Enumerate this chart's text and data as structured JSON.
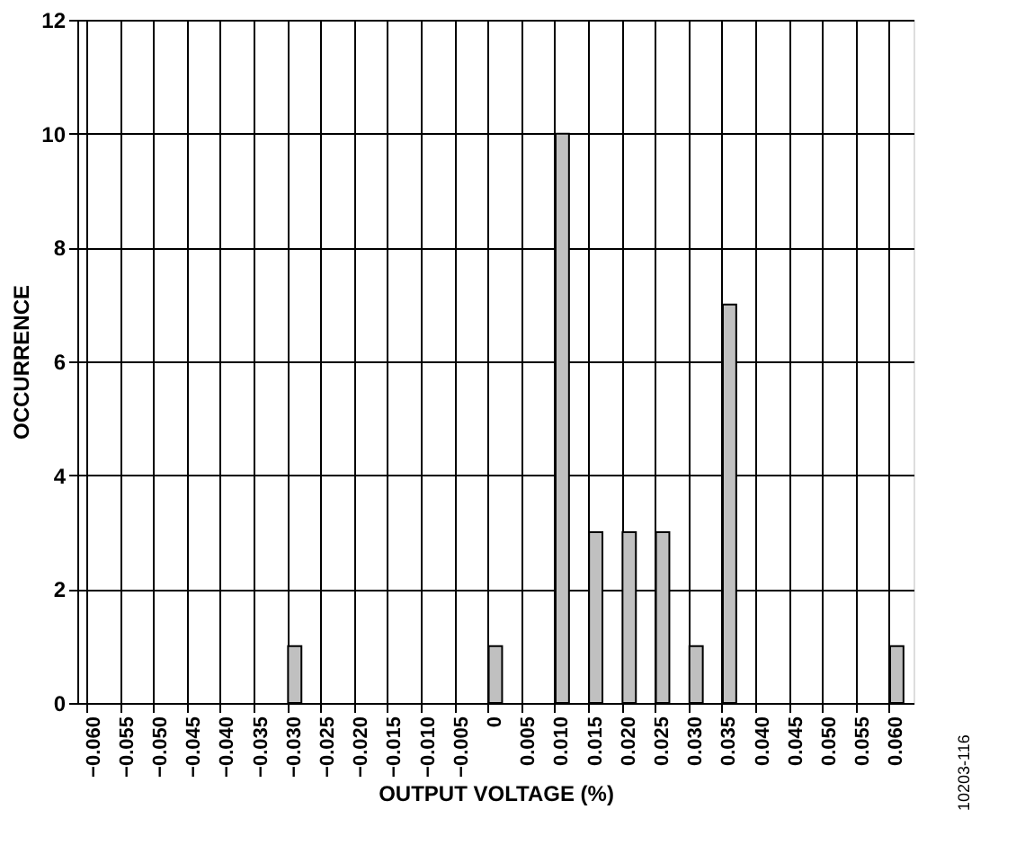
{
  "chart_data": {
    "type": "bar",
    "xlabel": "OUTPUT VOLTAGE (%)",
    "ylabel": "OCCURRENCE",
    "categories": [
      "−0.060",
      "−0.055",
      "−0.050",
      "−0.045",
      "−0.040",
      "−0.035",
      "−0.030",
      "−0.025",
      "−0.020",
      "−0.015",
      "−0.010",
      "−0.005",
      "0",
      "0.005",
      "0.010",
      "0.015",
      "0.020",
      "0.025",
      "0.030",
      "0.035",
      "0.040",
      "0.045",
      "0.050",
      "0.055",
      "0.060"
    ],
    "values": [
      0,
      0,
      0,
      0,
      0,
      0,
      1,
      0,
      0,
      0,
      0,
      0,
      1,
      0,
      10,
      3,
      3,
      3,
      1,
      7,
      0,
      0,
      0,
      0,
      1
    ],
    "color": "#c0c0c0",
    "ylim": [
      0,
      12
    ],
    "yticks": [
      0,
      2,
      4,
      6,
      8,
      10,
      12
    ],
    "grid": true,
    "annotations": [
      "10203-116"
    ]
  }
}
